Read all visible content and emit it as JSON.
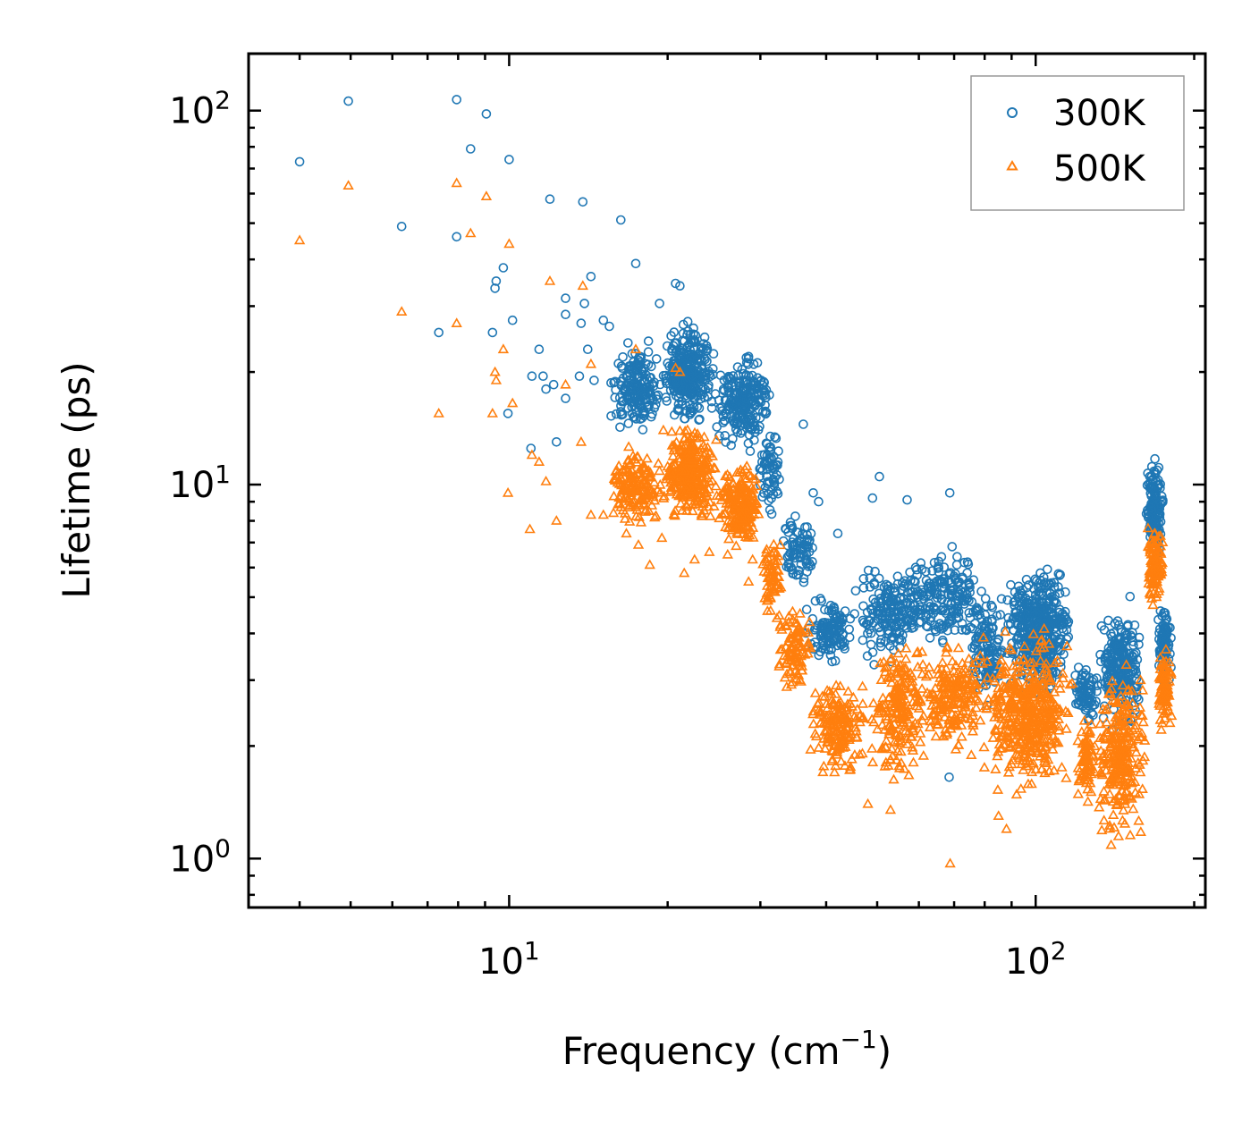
{
  "chart_data": {
    "type": "scatter",
    "xscale": "log",
    "yscale": "log",
    "xlim": [
      3.2,
      210
    ],
    "ylim": [
      0.74,
      142
    ],
    "xlabel": "Frequency (cm",
    "xlabel_sup": "−1",
    "xlabel_close": ")",
    "ylabel": "Lifetime (ps)",
    "x_ticks": [
      {
        "value": 10,
        "base": "10",
        "exp": "1"
      },
      {
        "value": 100,
        "base": "10",
        "exp": "2"
      }
    ],
    "y_ticks": [
      {
        "value": 1,
        "base": "10",
        "exp": "0"
      },
      {
        "value": 10,
        "base": "10",
        "exp": "1"
      },
      {
        "value": 100,
        "base": "10",
        "exp": "2"
      }
    ],
    "legend_position": "top-right",
    "series": [
      {
        "name": "300K",
        "marker": "circle",
        "color": "#1f77b4",
        "points": [
          [
            4.0,
            73
          ],
          [
            4.95,
            106
          ],
          [
            6.25,
            49
          ],
          [
            7.35,
            25.5
          ],
          [
            7.95,
            46
          ],
          [
            7.95,
            107
          ],
          [
            8.45,
            79
          ],
          [
            9.05,
            98
          ],
          [
            9.3,
            25.5
          ],
          [
            9.4,
            33.5
          ],
          [
            9.45,
            35
          ],
          [
            9.75,
            38
          ],
          [
            9.95,
            15.5
          ],
          [
            10.0,
            74
          ],
          [
            10.15,
            27.5
          ],
          [
            11.0,
            12.5
          ],
          [
            11.05,
            19.5
          ],
          [
            11.4,
            23
          ],
          [
            11.6,
            19.5
          ],
          [
            11.75,
            18
          ],
          [
            11.95,
            58
          ],
          [
            12.15,
            18.5
          ],
          [
            12.3,
            13
          ],
          [
            12.8,
            31.5
          ],
          [
            12.8,
            28.5
          ],
          [
            12.8,
            17
          ],
          [
            13.6,
            19.5
          ],
          [
            13.7,
            27
          ],
          [
            13.8,
            57
          ],
          [
            13.9,
            30.5
          ],
          [
            14.1,
            23
          ],
          [
            14.3,
            36
          ],
          [
            14.5,
            19
          ],
          [
            15.1,
            27.5
          ],
          [
            15.5,
            26.5
          ],
          [
            16.3,
            51
          ],
          [
            17.4,
            39
          ],
          [
            19.3,
            30.5
          ],
          [
            20.7,
            34.5
          ],
          [
            21.1,
            34
          ],
          [
            23.7,
            23.5
          ],
          [
            28.5,
            22
          ],
          [
            30.1,
            19
          ],
          [
            36.2,
            14.5
          ],
          [
            37.8,
            9.5
          ],
          [
            38.7,
            9
          ],
          [
            42.1,
            7.4
          ],
          [
            45.5,
            5.2
          ],
          [
            49.0,
            9.2
          ],
          [
            50.5,
            10.5
          ],
          [
            57.0,
            9.1
          ],
          [
            68.5,
            1.65
          ],
          [
            68.7,
            9.5
          ]
        ],
        "clusters": [
          {
            "x": [
              15.5,
              19.5
            ],
            "y": [
              13,
              25
            ],
            "n": 180,
            "seed": 11
          },
          {
            "x": [
              19.5,
              24.5
            ],
            "y": [
              14,
              28
            ],
            "n": 300,
            "seed": 12
          },
          {
            "x": [
              24.5,
              31.5
            ],
            "y": [
              12,
              23
            ],
            "n": 220,
            "seed": 13
          },
          {
            "x": [
              29.5,
              33
            ],
            "y": [
              8,
              15
            ],
            "n": 60,
            "seed": 14
          },
          {
            "x": [
              33,
              38
            ],
            "y": [
              5,
              9
            ],
            "n": 80,
            "seed": 15
          },
          {
            "x": [
              36,
              46
            ],
            "y": [
              3.2,
              5.2
            ],
            "n": 120,
            "seed": 16
          },
          {
            "x": [
              46,
              60
            ],
            "y": [
              3.2,
              6.5
            ],
            "n": 160,
            "seed": 17
          },
          {
            "x": [
              55,
              80
            ],
            "y": [
              3.5,
              7
            ],
            "n": 200,
            "seed": 18
          },
          {
            "x": [
              75,
              88
            ],
            "y": [
              2.2,
              6
            ],
            "n": 120,
            "seed": 19
          },
          {
            "x": [
              88,
              118
            ],
            "y": [
              2.5,
              6.5
            ],
            "n": 420,
            "seed": 20
          },
          {
            "x": [
              118,
              132
            ],
            "y": [
              2.2,
              3.5
            ],
            "n": 70,
            "seed": 21
          },
          {
            "x": [
              132,
              160
            ],
            "y": [
              2.0,
              5.2
            ],
            "n": 230,
            "seed": 22
          },
          {
            "x": [
              162,
              175
            ],
            "y": [
              6,
              12.5
            ],
            "n": 150,
            "seed": 23
          },
          {
            "x": [
              170,
              182
            ],
            "y": [
              2.8,
              5
            ],
            "n": 80,
            "seed": 24
          }
        ]
      },
      {
        "name": "500K",
        "marker": "triangle",
        "color": "#ff7f0e",
        "points": [
          [
            4.0,
            45
          ],
          [
            4.95,
            63
          ],
          [
            6.25,
            29
          ],
          [
            7.35,
            15.5
          ],
          [
            7.95,
            64
          ],
          [
            7.95,
            27
          ],
          [
            8.45,
            47
          ],
          [
            9.05,
            59
          ],
          [
            9.3,
            15.5
          ],
          [
            9.4,
            20
          ],
          [
            9.45,
            19
          ],
          [
            9.75,
            23
          ],
          [
            9.95,
            9.5
          ],
          [
            10.0,
            44
          ],
          [
            10.15,
            16.5
          ],
          [
            10.95,
            7.6
          ],
          [
            11.05,
            12
          ],
          [
            11.4,
            11.5
          ],
          [
            11.75,
            10.2
          ],
          [
            11.95,
            35
          ],
          [
            12.3,
            8
          ],
          [
            12.8,
            18.5
          ],
          [
            13.7,
            13
          ],
          [
            13.8,
            34
          ],
          [
            14.3,
            21
          ],
          [
            17.4,
            23
          ],
          [
            20.7,
            20.5
          ],
          [
            21.1,
            20
          ],
          [
            14.3,
            8.3
          ],
          [
            15.1,
            8.3
          ],
          [
            16.7,
            7.4
          ],
          [
            17.6,
            6.9
          ],
          [
            18.5,
            6.1
          ],
          [
            19.5,
            7.2
          ],
          [
            21.5,
            5.8
          ],
          [
            22.5,
            6.3
          ],
          [
            24,
            6.6
          ],
          [
            26,
            6.5
          ],
          [
            28.5,
            5.5
          ],
          [
            29,
            6.3
          ],
          [
            68.8,
            0.97
          ],
          [
            48,
            1.4
          ],
          [
            85,
            1.3
          ],
          [
            88,
            1.2
          ],
          [
            41.5,
            1.7
          ],
          [
            53,
            1.35
          ]
        ],
        "clusters": [
          {
            "x": [
              15.5,
              19.5
            ],
            "y": [
              7.5,
              13
            ],
            "n": 160,
            "seed": 31
          },
          {
            "x": [
              19.5,
              25
            ],
            "y": [
              7.5,
              15
            ],
            "n": 300,
            "seed": 32
          },
          {
            "x": [
              25,
              30
            ],
            "y": [
              6.5,
              12
            ],
            "n": 200,
            "seed": 33
          },
          {
            "x": [
              30,
              33
            ],
            "y": [
              4,
              8
            ],
            "n": 70,
            "seed": 34
          },
          {
            "x": [
              32,
              38
            ],
            "y": [
              2.6,
              5
            ],
            "n": 100,
            "seed": 35
          },
          {
            "x": [
              37,
              48
            ],
            "y": [
              1.6,
              3.2
            ],
            "n": 180,
            "seed": 36
          },
          {
            "x": [
              48,
              62
            ],
            "y": [
              1.5,
              4.2
            ],
            "n": 200,
            "seed": 37
          },
          {
            "x": [
              60,
              80
            ],
            "y": [
              1.8,
              4
            ],
            "n": 200,
            "seed": 38
          },
          {
            "x": [
              78,
              118
            ],
            "y": [
              1.4,
              4.2
            ],
            "n": 460,
            "seed": 39
          },
          {
            "x": [
              120,
              130
            ],
            "y": [
              1.3,
              2.5
            ],
            "n": 70,
            "seed": 40
          },
          {
            "x": [
              130,
              162
            ],
            "y": [
              1.0,
              3.5
            ],
            "n": 260,
            "seed": 41
          },
          {
            "x": [
              162,
              175
            ],
            "y": [
              4.5,
              8
            ],
            "n": 110,
            "seed": 42
          },
          {
            "x": [
              170,
              182
            ],
            "y": [
              2.1,
              3.8
            ],
            "n": 80,
            "seed": 43
          }
        ]
      }
    ]
  }
}
